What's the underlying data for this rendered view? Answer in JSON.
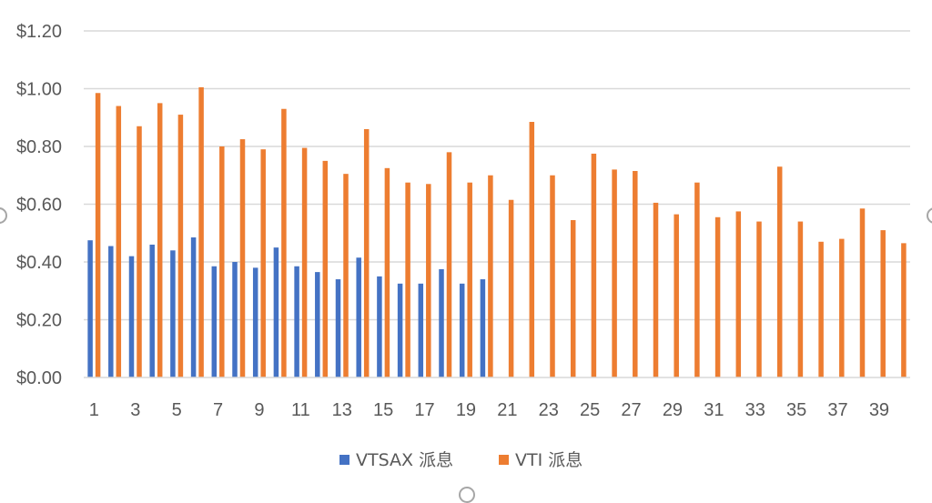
{
  "chart_data": {
    "type": "bar",
    "categories": [
      "1",
      "2",
      "3",
      "4",
      "5",
      "6",
      "7",
      "8",
      "9",
      "10",
      "11",
      "12",
      "13",
      "14",
      "15",
      "16",
      "17",
      "18",
      "19",
      "20",
      "21",
      "22",
      "23",
      "24",
      "25",
      "26",
      "27",
      "28",
      "29",
      "30",
      "31",
      "32",
      "33",
      "34",
      "35",
      "36",
      "37",
      "38",
      "39",
      "40"
    ],
    "x_tick_labels": [
      "1",
      "3",
      "5",
      "7",
      "9",
      "11",
      "13",
      "15",
      "17",
      "19",
      "21",
      "23",
      "25",
      "27",
      "29",
      "31",
      "33",
      "35",
      "37",
      "39"
    ],
    "y_tick_labels": [
      "$0.00",
      "$0.20",
      "$0.40",
      "$0.60",
      "$0.80",
      "$1.00",
      "$1.20"
    ],
    "ylim": [
      0,
      1.2
    ],
    "grid": true,
    "legend_position": "bottom",
    "series": [
      {
        "name": "VTSAX 派息",
        "color": "#4472c4",
        "values": [
          0.475,
          0.455,
          0.42,
          0.46,
          0.44,
          0.485,
          0.385,
          0.4,
          0.38,
          0.45,
          0.385,
          0.365,
          0.34,
          0.415,
          0.35,
          0.325,
          0.325,
          0.375,
          0.325,
          0.34,
          null,
          null,
          null,
          null,
          null,
          null,
          null,
          null,
          null,
          null,
          null,
          null,
          null,
          null,
          null,
          null,
          null,
          null,
          null,
          null
        ]
      },
      {
        "name": "VTI 派息",
        "color": "#ed7d31",
        "values": [
          0.985,
          0.94,
          0.87,
          0.95,
          0.91,
          1.005,
          0.8,
          0.825,
          0.79,
          0.93,
          0.795,
          0.75,
          0.705,
          0.86,
          0.725,
          0.675,
          0.67,
          0.78,
          0.675,
          0.7,
          0.615,
          0.885,
          0.7,
          0.545,
          0.775,
          0.72,
          0.715,
          0.605,
          0.565,
          0.675,
          0.555,
          0.575,
          0.54,
          0.73,
          0.54,
          0.47,
          0.48,
          0.585,
          0.51,
          0.465
        ]
      }
    ]
  }
}
